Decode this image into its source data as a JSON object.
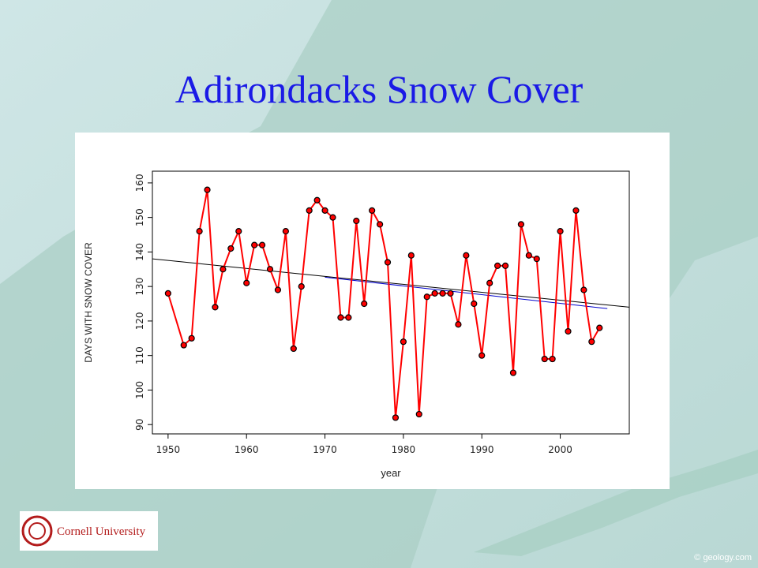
{
  "slide_title": "Adirondacks Snow Cover",
  "logo_text": "Cornell University",
  "watermark": "© geology.com",
  "chart_data": {
    "type": "line",
    "xlabel": "year",
    "ylabel": "DAYS WITH SNOW COVER",
    "x": [
      1950,
      1952,
      1953,
      1954,
      1955,
      1956,
      1957,
      1958,
      1959,
      1960,
      1961,
      1962,
      1963,
      1964,
      1965,
      1966,
      1967,
      1968,
      1969,
      1970,
      1971,
      1972,
      1973,
      1974,
      1975,
      1976,
      1977,
      1978,
      1979,
      1980,
      1981,
      1982,
      1983,
      1984,
      1985,
      1986,
      1987,
      1988,
      1989,
      1990,
      1991,
      1992,
      1993,
      1994,
      1995,
      1996,
      1997,
      1998,
      1999,
      2000,
      2001,
      2002,
      2003,
      2004,
      2005
    ],
    "series": [
      {
        "color": "#ff0000",
        "values": [
          128,
          113,
          115,
          146,
          158,
          124,
          135,
          141,
          146,
          131,
          142,
          142,
          135,
          129,
          146,
          112,
          130,
          152,
          155,
          152,
          150,
          121,
          121,
          149,
          125,
          152,
          148,
          137,
          92,
          114,
          139,
          93,
          127,
          128,
          128,
          128,
          119,
          139,
          125,
          110,
          131,
          136,
          136,
          105,
          148,
          139,
          138,
          109,
          109,
          146,
          117,
          152,
          129,
          114,
          118
        ]
      }
    ],
    "trend_lines": [
      {
        "color": "#000000",
        "x": [
          1948,
          2008.8
        ],
        "y": [
          138,
          124
        ]
      },
      {
        "color": "#0000cc",
        "x": [
          1970,
          2006
        ],
        "y": [
          132.7,
          123.6
        ]
      }
    ],
    "xlim": [
      1948,
      2008.8
    ],
    "ylim": [
      87.3,
      163.4
    ],
    "xticks": [
      1950,
      1960,
      1970,
      1980,
      1990,
      2000
    ],
    "yticks": [
      90,
      100,
      110,
      120,
      130,
      140,
      150,
      160
    ]
  }
}
